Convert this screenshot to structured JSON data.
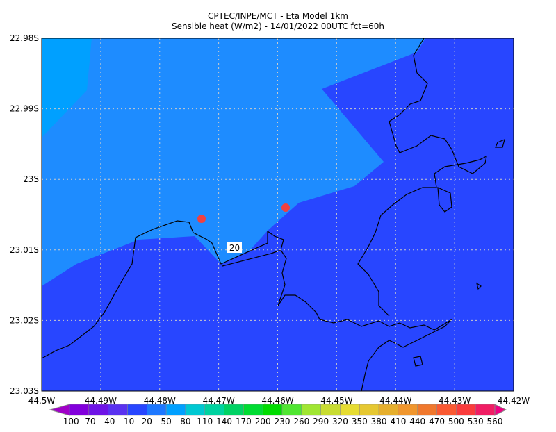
{
  "header": {
    "title": "CPTEC/INPE/MCT -  Eta Model 1km",
    "subtitle": "Sensible heat (W/m2) - 14/01/2022 00UTC fct=60h"
  },
  "map": {
    "lat_labels": [
      "22.98S",
      "22.99S",
      "23S",
      "23.01S",
      "23.02S",
      "23.03S"
    ],
    "lon_labels": [
      "44.5W",
      "44.49W",
      "44.48W",
      "44.47W",
      "44.46W",
      "44.45W",
      "44.44W",
      "44.43W",
      "44.42W"
    ],
    "contour_label": "20"
  },
  "colorbar": {
    "labels": [
      -100,
      -70,
      -40,
      -10,
      20,
      50,
      80,
      110,
      140,
      170,
      200,
      230,
      260,
      290,
      320,
      350,
      380,
      410,
      440,
      470,
      500,
      530,
      560
    ],
    "colors": [
      "#a000c8",
      "#8200dc",
      "#6e14e6",
      "#5a32f0",
      "#2846ff",
      "#1e78ff",
      "#00a0ff",
      "#00c8d2",
      "#00d2a0",
      "#00d264",
      "#00dc32",
      "#00dc00",
      "#50e632",
      "#a0e632",
      "#c8dc32",
      "#e6dc32",
      "#e6c832",
      "#e6af2d",
      "#f0962d",
      "#f0782d",
      "#fa5a32",
      "#fa3c3c",
      "#f01e64",
      "#f00082"
    ]
  }
}
